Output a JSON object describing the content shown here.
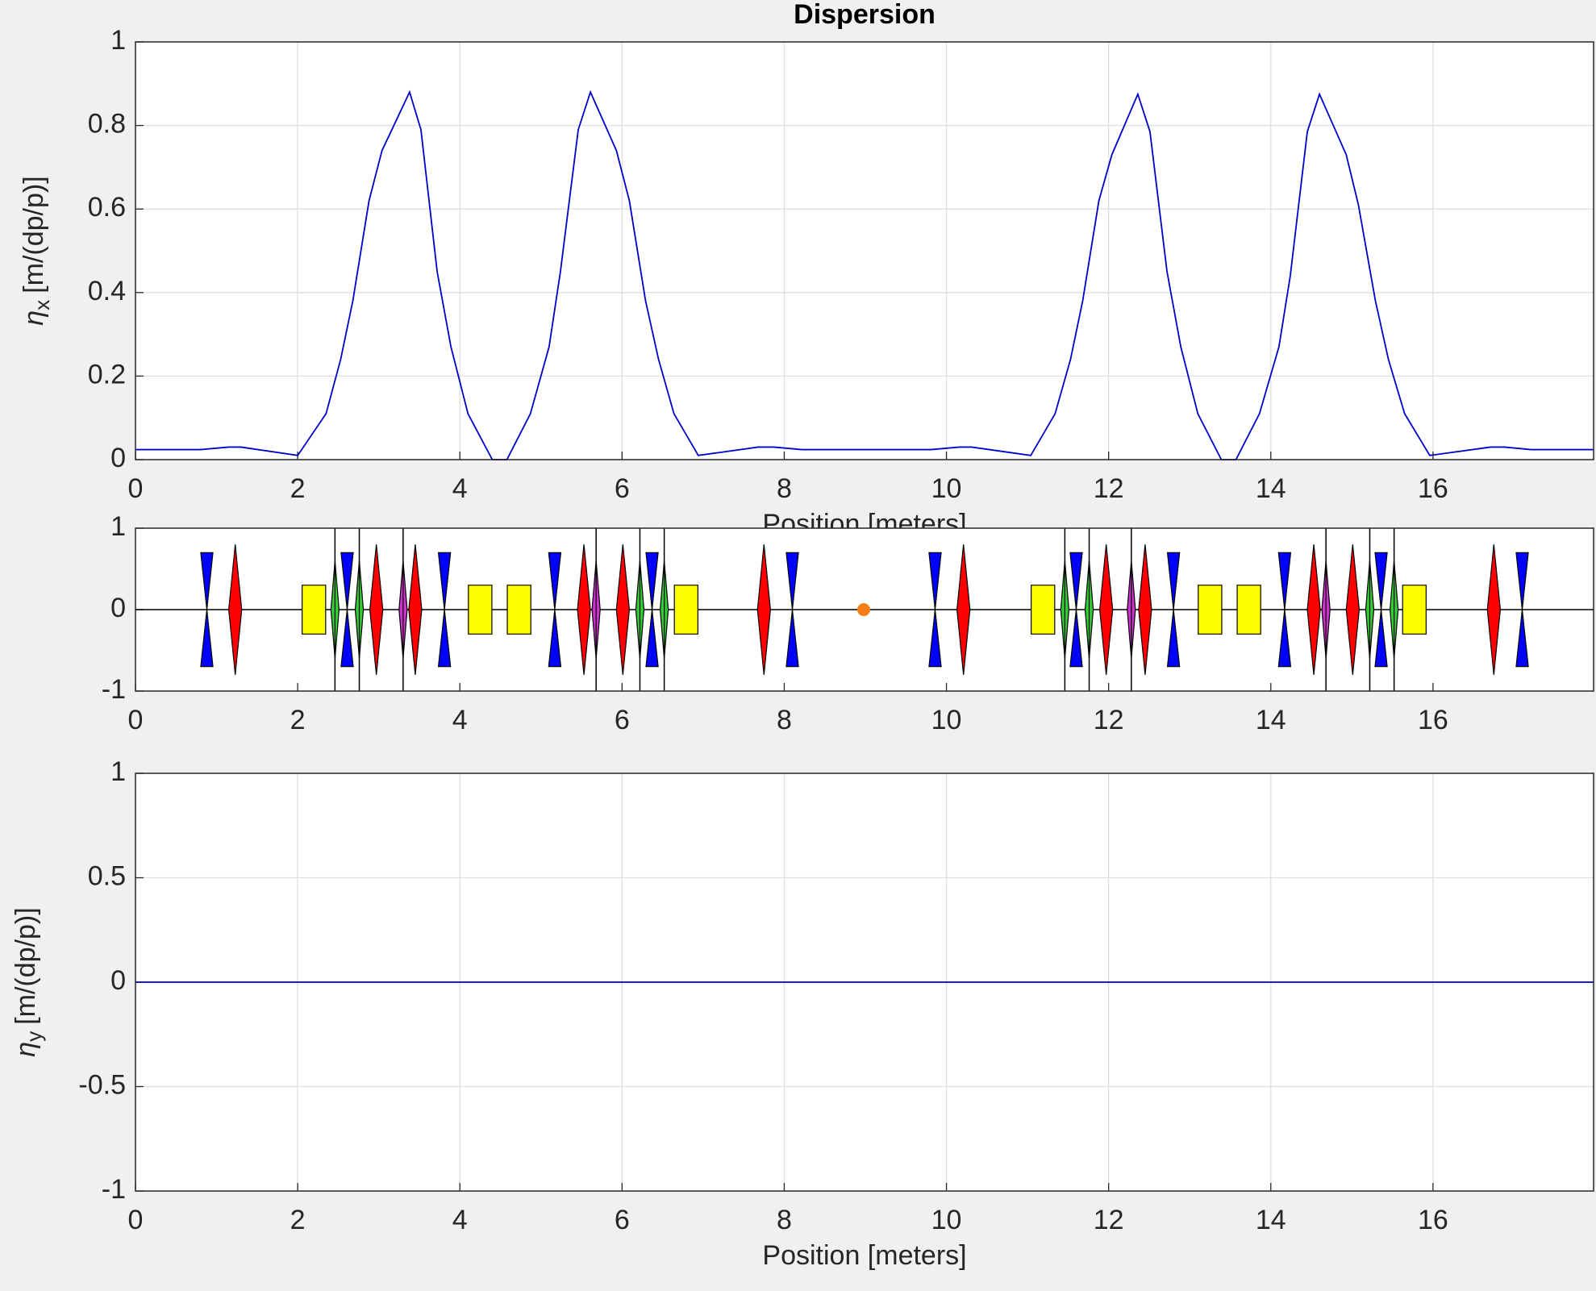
{
  "chart_data": [
    {
      "type": "line",
      "title": "Dispersion",
      "ylabel": {
        "symbol": "η",
        "sub": "x",
        "unit": "[m/(dp/p)]"
      },
      "xlabel": "Position [meters]",
      "x": [
        0,
        0.8,
        1.15,
        1.3,
        2.0,
        2.35,
        2.53,
        2.68,
        2.88,
        3.04,
        3.38,
        3.52,
        3.72,
        3.89,
        4.1,
        4.4,
        4.58,
        4.87,
        5.1,
        5.24,
        5.46,
        5.61,
        5.93,
        6.09,
        6.29,
        6.45,
        6.64,
        6.94,
        7.68,
        7.87,
        8.22,
        9.81,
        10.16,
        10.31,
        11.04,
        11.34,
        11.53,
        11.68,
        11.88,
        12.04,
        12.36,
        12.51,
        12.72,
        12.89,
        13.1,
        13.39,
        13.57,
        13.86,
        14.1,
        14.24,
        14.45,
        14.6,
        14.93,
        15.08,
        15.29,
        15.45,
        15.65,
        15.96,
        16.71,
        16.88,
        17.21,
        17.98
      ],
      "series": [
        {
          "color": "#0000cc",
          "values": [
            0.024,
            0.024,
            0.03,
            0.03,
            0.01,
            0.11,
            0.24,
            0.38,
            0.62,
            0.74,
            0.88,
            0.79,
            0.45,
            0.27,
            0.11,
            0,
            0,
            0.11,
            0.27,
            0.45,
            0.79,
            0.88,
            0.74,
            0.62,
            0.38,
            0.24,
            0.11,
            0.01,
            0.03,
            0.03,
            0.024,
            0.024,
            0.03,
            0.03,
            0.01,
            0.11,
            0.24,
            0.38,
            0.62,
            0.73,
            0.875,
            0.785,
            0.45,
            0.27,
            0.11,
            0,
            0,
            0.11,
            0.27,
            0.44,
            0.785,
            0.875,
            0.73,
            0.61,
            0.38,
            0.24,
            0.11,
            0.01,
            0.03,
            0.03,
            0.024,
            0.024
          ]
        }
      ],
      "xlim": [
        0,
        17.98
      ],
      "ylim": [
        0,
        1
      ],
      "xticks": [
        0,
        2,
        4,
        6,
        8,
        10,
        12,
        14,
        16
      ],
      "yticks": [
        0,
        0.2,
        0.4,
        0.6,
        0.8,
        1
      ],
      "grid": true
    },
    {
      "type": "lattice",
      "elements": [
        {
          "shape": "bowtie",
          "color": "#0000ff",
          "width": 0.15,
          "height": 0.7,
          "x": [
            0.88,
            2.61,
            3.81,
            5.17,
            6.37,
            8.1,
            9.86,
            11.6,
            12.8,
            14.17,
            15.36,
            17.1
          ]
        },
        {
          "shape": "diamond",
          "color": "#ff0000",
          "width": 0.16,
          "height": 0.8,
          "x": [
            1.23,
            2.97,
            3.45,
            5.53,
            6.01,
            7.75,
            10.21,
            11.97,
            12.45,
            14.53,
            15.01,
            16.75
          ]
        },
        {
          "shape": "rect",
          "color": "#ffff00",
          "width": 0.29,
          "height": 0.3,
          "x": [
            2.2,
            4.25,
            4.73,
            6.79,
            11.19,
            13.25,
            13.73,
            15.77
          ]
        },
        {
          "shape": "diamond",
          "color": "#33cc33",
          "width": 0.1,
          "height": 0.6,
          "line": true,
          "x": [
            2.46,
            2.76,
            6.22,
            6.52,
            11.46,
            11.76,
            15.22,
            15.52
          ]
        },
        {
          "shape": "diamond",
          "color": "#cc33cc",
          "width": 0.1,
          "height": 0.6,
          "line": true,
          "x": [
            3.3,
            5.68,
            12.28,
            14.68
          ]
        },
        {
          "shape": "dot",
          "color": "#f57f17",
          "x": [
            8.98
          ]
        }
      ],
      "xlim": [
        0,
        17.98
      ],
      "ylim": [
        -1,
        1
      ],
      "xticks": [
        0,
        2,
        4,
        6,
        8,
        10,
        12,
        14,
        16
      ],
      "yticks": [
        -1,
        0,
        1
      ],
      "grid": false
    },
    {
      "type": "line",
      "ylabel": {
        "symbol": "η",
        "sub": "y",
        "unit": "[m/(dp/p)]"
      },
      "xlabel": "Position [meters]",
      "x": [
        0,
        17.98
      ],
      "series": [
        {
          "color": "#0000cc",
          "values": [
            0,
            0
          ]
        }
      ],
      "xlim": [
        0,
        17.98
      ],
      "ylim": [
        -1,
        1
      ],
      "xticks": [
        0,
        2,
        4,
        6,
        8,
        10,
        12,
        14,
        16
      ],
      "yticks": [
        -1,
        -0.5,
        0,
        0.5,
        1
      ],
      "grid": true
    }
  ]
}
